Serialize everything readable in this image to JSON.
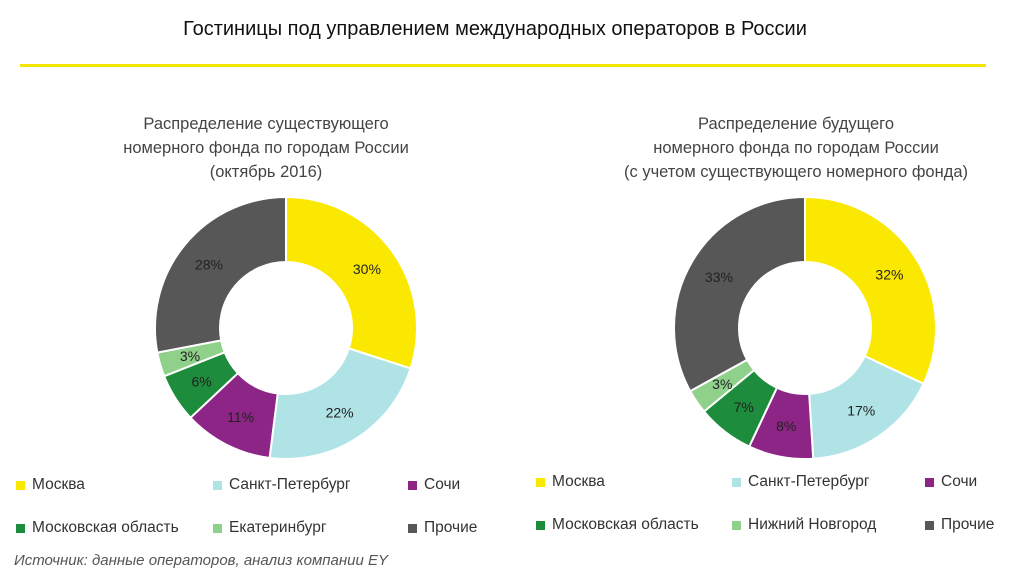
{
  "page": {
    "title": "Гостиницы под управлением международных операторов в России",
    "accent_color": "#f2e600",
    "source": "Источник: данные операторов, анализ компании EY"
  },
  "chart_data": [
    {
      "type": "pie",
      "donut": true,
      "title_lines": [
        "Распределение существующего",
        "номерного фонда по городам России",
        "(октябрь 2016)"
      ],
      "slices": [
        {
          "label": "Москва",
          "value": 30,
          "display": "30%",
          "color": "#fbe800"
        },
        {
          "label": "Санкт-Петербург",
          "value": 22,
          "display": "22%",
          "color": "#b0e3e6"
        },
        {
          "label": "Сочи",
          "value": 11,
          "display": "11%",
          "color": "#8c2585"
        },
        {
          "label": "Московская область",
          "value": 6,
          "display": "6%",
          "color": "#1d8c3c"
        },
        {
          "label": "Екатеринбург",
          "value": 3,
          "display": "3%",
          "color": "#8fd18a"
        },
        {
          "label": "Прочие",
          "value": 28,
          "display": "28%",
          "color": "#575757"
        }
      ],
      "legend": [
        "Москва",
        "Санкт-Петербург",
        "Сочи",
        "Московская область",
        "Екатеринбург",
        "Прочие"
      ]
    },
    {
      "type": "pie",
      "donut": true,
      "title_lines": [
        "Распределение будущего",
        "номерного фонда по городам России",
        "(с учетом существующего номерного фонда)"
      ],
      "slices": [
        {
          "label": "Москва",
          "value": 32,
          "display": "32%",
          "color": "#fbe800"
        },
        {
          "label": "Санкт-Петербург",
          "value": 17,
          "display": "17%",
          "color": "#b0e3e6"
        },
        {
          "label": "Сочи",
          "value": 8,
          "display": "8%",
          "color": "#8c2585"
        },
        {
          "label": "Московская область",
          "value": 7,
          "display": "7%",
          "color": "#1d8c3c"
        },
        {
          "label": "Нижний Новгород",
          "value": 3,
          "display": "3%",
          "color": "#8fd18a"
        },
        {
          "label": "Прочие",
          "value": 33,
          "display": "33%",
          "color": "#575757"
        }
      ],
      "legend": [
        "Москва",
        "Санкт-Петербург",
        "Сочи",
        "Московская область",
        "Нижний Новгород",
        "Прочие"
      ]
    }
  ]
}
